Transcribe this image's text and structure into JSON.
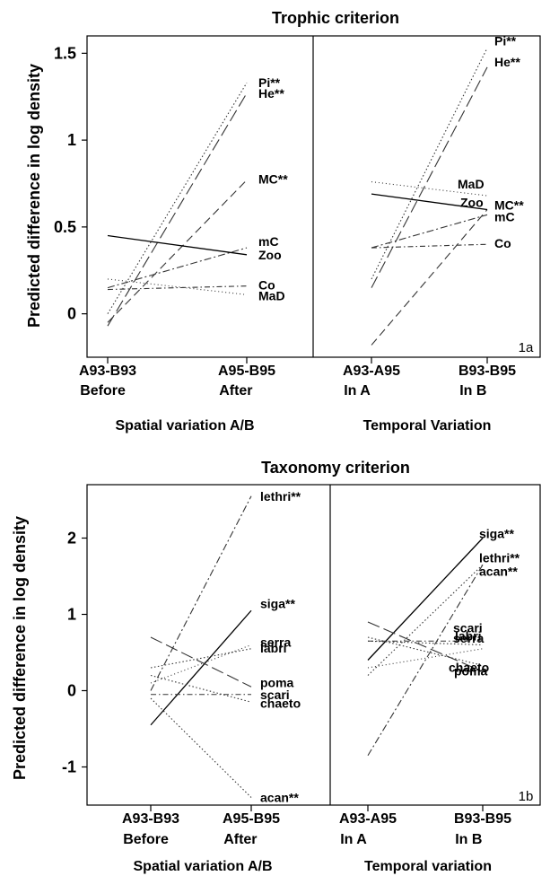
{
  "chart_data": [
    {
      "type": "line",
      "title": "Trophic criterion",
      "ylabel": "Predicted difference in log density",
      "panel_tag": "1a",
      "ylim": [
        -0.25,
        1.6
      ],
      "yticks": [
        "1.5",
        "1",
        "0.5",
        "0"
      ],
      "ytick_values": [
        1.5,
        1.0,
        0.5,
        0.0
      ],
      "x": [
        {
          "line1": "A93-B93",
          "line2": "Before"
        },
        {
          "line1": "A95-B95",
          "line2": "After"
        },
        {
          "line1": "A93-A95",
          "line2": "In A"
        },
        {
          "line1": "B93-B95",
          "line2": "In B"
        }
      ],
      "x_groups": [
        "Spatial variation A/B",
        "Temporal Variation"
      ],
      "series": [
        {
          "label": "Pi**",
          "spatial": [
            0.0,
            1.33
          ],
          "temporal": [
            0.2,
            1.53
          ],
          "style": "dotted"
        },
        {
          "label": "He**",
          "spatial": [
            -0.07,
            1.27
          ],
          "temporal": [
            0.15,
            1.42
          ],
          "style": "longdash"
        },
        {
          "label": "MC**",
          "spatial": [
            -0.05,
            0.77
          ],
          "temporal": [
            -0.18,
            0.6
          ],
          "style": "dashed"
        },
        {
          "label": "mC",
          "spatial": [
            0.15,
            0.38
          ],
          "temporal": [
            0.38,
            0.57
          ],
          "style": "dashdot"
        },
        {
          "label": "Zoo",
          "spatial": [
            0.45,
            0.34
          ],
          "temporal": [
            0.69,
            0.6
          ],
          "style": "solid"
        },
        {
          "label": "Co",
          "spatial": [
            0.14,
            0.16
          ],
          "temporal": [
            0.38,
            0.4
          ],
          "style": "dashdot2"
        },
        {
          "label": "MaD",
          "spatial": [
            0.2,
            0.11
          ],
          "temporal": [
            0.76,
            0.68
          ],
          "style": "dotted2"
        }
      ],
      "colors": {
        "axis": "#000000",
        "line": "#333333"
      }
    },
    {
      "type": "line",
      "title": "Taxonomy criterion",
      "ylabel": "Predicted difference in log density",
      "panel_tag": "1b",
      "ylim": [
        -1.5,
        2.7
      ],
      "yticks": [
        "2",
        "1",
        "0",
        "-1"
      ],
      "ytick_values": [
        2,
        1,
        0,
        -1
      ],
      "x": [
        {
          "line1": "A93-B93",
          "line2": "Before"
        },
        {
          "line1": "A95-B95",
          "line2": "After"
        },
        {
          "line1": "A93-A95",
          "line2": "In A"
        },
        {
          "line1": "B93-B95",
          "line2": "In B"
        }
      ],
      "x_groups": [
        "Spatial variation A/B",
        "Temporal variation"
      ],
      "series": [
        {
          "label": "lethri**",
          "spatial": [
            0.0,
            2.55
          ],
          "temporal": [
            -0.85,
            1.65
          ],
          "style": "dashdot"
        },
        {
          "label": "siga**",
          "spatial": [
            -0.45,
            1.05
          ],
          "temporal": [
            0.4,
            2.0
          ],
          "style": "solid"
        },
        {
          "label": "serra",
          "spatial": [
            0.1,
            0.6
          ],
          "temporal": [
            0.3,
            0.55
          ],
          "style": "dotted2"
        },
        {
          "label": "labri",
          "spatial": [
            0.3,
            0.55
          ],
          "temporal": [
            0.65,
            0.6
          ],
          "style": "dotted"
        },
        {
          "label": "poma",
          "spatial": [
            0.7,
            0.05
          ],
          "temporal": [
            0.9,
            0.25
          ],
          "style": "longdash"
        },
        {
          "label": "scari",
          "spatial": [
            -0.05,
            -0.05
          ],
          "temporal": [
            0.65,
            0.65
          ],
          "style": "dashdot2"
        },
        {
          "label": "chaeto",
          "spatial": [
            0.2,
            -0.15
          ],
          "temporal": [
            0.7,
            0.33
          ],
          "style": "dotted"
        },
        {
          "label": "acan**",
          "spatial": [
            -0.1,
            -1.4
          ],
          "temporal": [
            0.2,
            1.65
          ],
          "style": "dotted"
        }
      ],
      "colors": {
        "axis": "#000000",
        "line": "#333333"
      }
    }
  ]
}
